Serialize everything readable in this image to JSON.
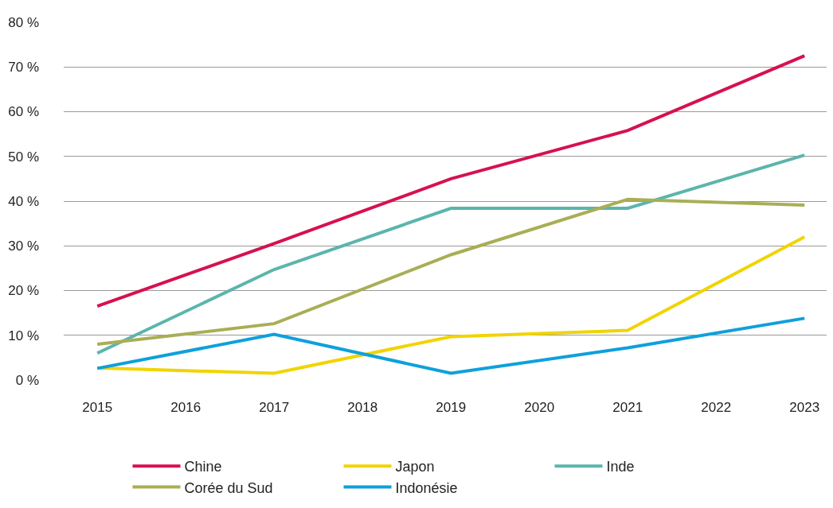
{
  "chart_data": {
    "type": "line",
    "xlim": [
      2014.62,
      2023.25
    ],
    "xticks": [
      2015,
      2016,
      2017,
      2018,
      2019,
      2020,
      2021,
      2022,
      2023
    ],
    "ylim": [
      0,
      80
    ],
    "yticks": [
      {
        "value": 0,
        "label": "0 %"
      },
      {
        "value": 10,
        "label": "10 %"
      },
      {
        "value": 20,
        "label": "20 %"
      },
      {
        "value": 30,
        "label": "30 %"
      },
      {
        "value": 40,
        "label": "40 %"
      },
      {
        "value": 50,
        "label": "50 %"
      },
      {
        "value": 60,
        "label": "60 %"
      },
      {
        "value": 70,
        "label": "70 %"
      },
      {
        "value": 80,
        "label": "80 %"
      }
    ],
    "grid": "y",
    "legend": "bottom",
    "marker": "none",
    "line_style": "solid",
    "series": [
      {
        "name": "Chine",
        "color": "#d6114f",
        "x": [
          2015,
          2017,
          2019,
          2021,
          2023
        ],
        "values": [
          16.5,
          30.5,
          45,
          55.8,
          72.5
        ]
      },
      {
        "name": "Japon",
        "color": "#f0d400",
        "x": [
          2015,
          2017,
          2019,
          2021,
          2023
        ],
        "values": [
          2.7,
          1.5,
          9.7,
          11.1,
          32
        ]
      },
      {
        "name": "Inde",
        "color": "#5bb5ab",
        "x": [
          2015,
          2017,
          2019,
          2021,
          2023
        ],
        "values": [
          6,
          24.7,
          38.4,
          38.4,
          50.3
        ]
      },
      {
        "name": "Corée du Sud",
        "color": "#a9ae55",
        "x": [
          2015,
          2017,
          2019,
          2021,
          2023
        ],
        "values": [
          8,
          12.6,
          28,
          40.4,
          39.1
        ]
      },
      {
        "name": "Indonésie",
        "color": "#0ea0dc",
        "x": [
          2015,
          2017,
          2019,
          2021,
          2023
        ],
        "values": [
          2.6,
          10.2,
          1.5,
          7.2,
          13.8
        ]
      }
    ]
  }
}
